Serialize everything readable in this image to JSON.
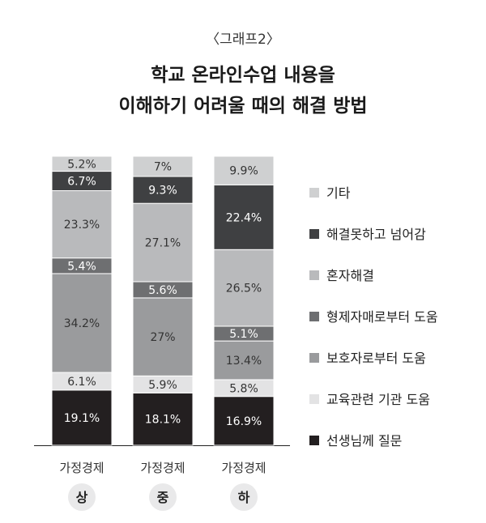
{
  "chart_data": {
    "type": "stacked-bar",
    "caption": "〈그래프2〉",
    "title_lines": [
      "학교 온라인수업 내용을",
      "이해하기 어려울 때의 해결 방법"
    ],
    "categories": [
      {
        "label": "가정경제",
        "level": "상"
      },
      {
        "label": "가정경제",
        "level": "중"
      },
      {
        "label": "가정경제",
        "level": "하"
      }
    ],
    "series": [
      {
        "name": "선생님께 질문",
        "color": "#231f20",
        "text_color": "#ffffff",
        "values": [
          19.1,
          18.1,
          16.9
        ]
      },
      {
        "name": "교육관련 기관 도움",
        "color": "#e3e3e4",
        "text_color": "#333333",
        "values": [
          6.1,
          5.9,
          5.8
        ]
      },
      {
        "name": "보호자로부터 도움",
        "color": "#9a9b9d",
        "text_color": "#333333",
        "values": [
          34.2,
          27,
          13.4
        ]
      },
      {
        "name": "형제자매로부터 도움",
        "color": "#6e6f71",
        "text_color": "#ffffff",
        "values": [
          5.4,
          5.6,
          5.1
        ]
      },
      {
        "name": "혼자해결",
        "color": "#b9babc",
        "text_color": "#333333",
        "values": [
          23.3,
          27.1,
          26.5
        ]
      },
      {
        "name": "해결못하고 넘어감",
        "color": "#3f4042",
        "text_color": "#ffffff",
        "values": [
          6.7,
          9.3,
          22.4
        ]
      },
      {
        "name": "기타",
        "color": "#cfd0d1",
        "text_color": "#333333",
        "values": [
          5.2,
          7,
          9.9
        ]
      }
    ],
    "value_suffix": "%",
    "legend_order": [
      "기타",
      "해결못하고 넘어감",
      "혼자해결",
      "형제자매로부터 도움",
      "보호자로부터 도움",
      "교육관련 기관 도움",
      "선생님께 질문"
    ],
    "legend_placement": "right",
    "ylim": [
      0,
      100
    ]
  }
}
